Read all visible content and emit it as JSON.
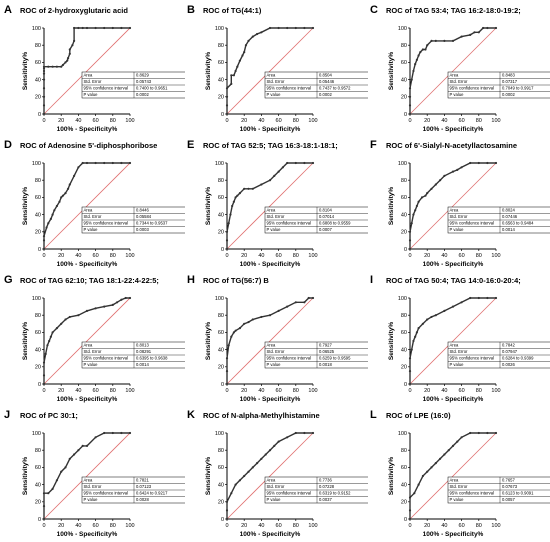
{
  "axis": {
    "ylabel": "Sensitivity%",
    "xlabel": "100% - Specificity%",
    "ticks": [
      0,
      20,
      40,
      60,
      80,
      100
    ]
  },
  "stats_labels": [
    "Area",
    "Std. Error",
    "95% confidence interval",
    "P value"
  ],
  "colors": {
    "curve": "#333333",
    "reference": "#e07070"
  },
  "panels": [
    {
      "letter": "A",
      "title": "ROC of 2-hydroxyglutaric acid",
      "stats": [
        "0.8629",
        "0.05743",
        "0.7400 to 0.9651",
        "0.0002"
      ]
    },
    {
      "letter": "B",
      "title": "ROC of TG(44:1)",
      "stats": [
        "0.8504",
        "0.05446",
        "0.7437 to 0.9572",
        "0.0002"
      ]
    },
    {
      "letter": "C",
      "title": "ROC of TAG 53:4; TAG 16:2-18:0-19:2;",
      "stats": [
        "0.8483",
        "0.07317",
        "0.7049 to 0.9917",
        "0.0002"
      ]
    },
    {
      "letter": "D",
      "title": "ROC of Adenosine 5'-diphosphoribose",
      "stats": [
        "0.8446",
        "0.05584",
        "0.7344 to 0.9537",
        "0.0003"
      ]
    },
    {
      "letter": "E",
      "title": "ROC of TAG 52:5; TAG 16:3-18:1-18:1;",
      "stats": [
        "0.8104",
        "0.07014",
        "0.6808 to 0.9559",
        "0.0007"
      ]
    },
    {
      "letter": "F",
      "title": "ROC of 6'-Sialyl-N-acetyllactosamine",
      "stats": [
        "0.8024",
        "0.07446",
        "0.6563 to 0.9484",
        "0.0014"
      ]
    },
    {
      "letter": "G",
      "title": "ROC of TAG 62:10; TAG 18:1-22:4-22:5;",
      "stats": [
        "0.8013",
        "0.08291",
        "0.6395 to 0.9638",
        "0.0014"
      ]
    },
    {
      "letter": "H",
      "title": "ROC of TG(56:7) B",
      "stats": [
        "0.7927",
        "0.06525",
        "0.6259 to 0.9595",
        "0.0018"
      ]
    },
    {
      "letter": "I",
      "title": "ROC of TAG 50:4; TAG 14:0-16:0-20:4;",
      "stats": [
        "0.7842",
        "0.07947",
        "0.6284 to 0.9399",
        "0.0026"
      ]
    },
    {
      "letter": "J",
      "title": "ROC of PC 30:1;",
      "stats": [
        "0.7821",
        "0.07123",
        "0.6424 to 0.9217",
        "0.0028"
      ]
    },
    {
      "letter": "K",
      "title": "ROC of N-alpha-Methylhistamine",
      "stats": [
        "0.7736",
        "0.07228",
        "0.6319 to 0.9152",
        "0.0037"
      ]
    },
    {
      "letter": "L",
      "title": "ROC of LPE (16:0)",
      "stats": [
        "0.7657",
        "0.07673",
        "0.6123 to 0.9091",
        "0.0057"
      ]
    }
  ],
  "chart_data": [
    {
      "type": "line",
      "title": "ROC of 2-hydroxyglutaric acid",
      "xlabel": "100% - Specificity%",
      "ylabel": "Sensitivity%",
      "xlim": [
        0,
        100
      ],
      "ylim": [
        0,
        100
      ],
      "series": [
        {
          "x": [
            0,
            0,
            0,
            0,
            0,
            0,
            0,
            0,
            0,
            5,
            10,
            15,
            20,
            22,
            25,
            27,
            28,
            30,
            30,
            33,
            35,
            35,
            40,
            45,
            50,
            60,
            70,
            80,
            90,
            100
          ],
          "y": [
            0,
            10,
            20,
            30,
            40,
            47,
            50,
            53,
            55,
            55,
            55,
            55,
            55,
            57,
            60,
            62,
            65,
            70,
            75,
            80,
            85,
            100,
            100,
            100,
            100,
            100,
            100,
            100,
            100,
            100
          ]
        }
      ]
    },
    {
      "type": "line",
      "title": "ROC of TG(44:1)",
      "xlabel": "100% - Specificity%",
      "ylabel": "Sensitivity%",
      "xlim": [
        0,
        100
      ],
      "ylim": [
        0,
        100
      ],
      "series": [
        {
          "x": [
            0,
            0,
            0,
            0,
            5,
            5,
            8,
            10,
            12,
            15,
            18,
            20,
            22,
            25,
            30,
            35,
            40,
            50,
            60,
            70,
            80,
            90,
            100
          ],
          "y": [
            0,
            10,
            20,
            30,
            35,
            45,
            45,
            50,
            55,
            62,
            68,
            72,
            80,
            85,
            90,
            93,
            95,
            100,
            100,
            100,
            100,
            100,
            100
          ]
        }
      ]
    },
    {
      "type": "line",
      "title": "ROC of TAG 53:4; TAG 16:2-18:0-19:2;",
      "xlabel": "100% - Specificity%",
      "ylabel": "Sensitivity%",
      "xlim": [
        0,
        100
      ],
      "ylim": [
        0,
        100
      ],
      "series": [
        {
          "x": [
            0,
            0,
            0,
            0,
            2,
            4,
            6,
            8,
            10,
            12,
            15,
            18,
            20,
            25,
            30,
            40,
            50,
            60,
            70,
            75,
            80,
            85,
            90,
            100
          ],
          "y": [
            0,
            10,
            20,
            30,
            40,
            50,
            58,
            63,
            68,
            72,
            75,
            75,
            80,
            85,
            85,
            85,
            85,
            90,
            92,
            95,
            95,
            100,
            100,
            100
          ]
        }
      ]
    },
    {
      "type": "line",
      "title": "ROC of Adenosine 5'-diphosphoribose",
      "xlabel": "100% - Specificity%",
      "ylabel": "Sensitivity%",
      "xlim": [
        0,
        100
      ],
      "ylim": [
        0,
        100
      ],
      "series": [
        {
          "x": [
            0,
            0,
            0,
            3,
            5,
            8,
            10,
            12,
            15,
            18,
            20,
            22,
            25,
            28,
            30,
            35,
            40,
            45,
            50,
            60,
            70,
            80,
            90,
            100
          ],
          "y": [
            0,
            10,
            15,
            25,
            30,
            35,
            40,
            45,
            50,
            55,
            60,
            62,
            65,
            70,
            75,
            85,
            95,
            100,
            100,
            100,
            100,
            100,
            100,
            100
          ]
        }
      ]
    },
    {
      "type": "line",
      "title": "ROC of TAG 52:5; TAG 16:3-18:1-18:1;",
      "xlabel": "100% - Specificity%",
      "ylabel": "Sensitivity%",
      "xlim": [
        0,
        100
      ],
      "ylim": [
        0,
        100
      ],
      "series": [
        {
          "x": [
            0,
            0,
            0,
            2,
            4,
            6,
            8,
            10,
            12,
            15,
            20,
            25,
            30,
            40,
            50,
            55,
            60,
            65,
            70,
            80,
            90,
            100
          ],
          "y": [
            0,
            10,
            20,
            30,
            40,
            50,
            55,
            60,
            62,
            65,
            70,
            70,
            70,
            75,
            80,
            85,
            90,
            95,
            100,
            100,
            100,
            100
          ]
        }
      ]
    },
    {
      "type": "line",
      "title": "ROC of 6'-Sialyl-N-acetyllactosamine",
      "xlabel": "100% - Specificity%",
      "ylabel": "Sensitivity%",
      "xlim": [
        0,
        100
      ],
      "ylim": [
        0,
        100
      ],
      "series": [
        {
          "x": [
            0,
            0,
            0,
            2,
            4,
            6,
            8,
            10,
            14,
            18,
            20,
            25,
            30,
            35,
            40,
            50,
            55,
            60,
            70,
            80,
            90,
            100
          ],
          "y": [
            0,
            10,
            20,
            30,
            40,
            45,
            50,
            55,
            60,
            62,
            65,
            70,
            75,
            80,
            85,
            90,
            92,
            95,
            100,
            100,
            100,
            100
          ]
        }
      ]
    },
    {
      "type": "line",
      "title": "ROC of TAG 62:10; TAG 18:1-22:4-22:5;",
      "xlabel": "100% - Specificity%",
      "ylabel": "Sensitivity%",
      "xlim": [
        0,
        100
      ],
      "ylim": [
        0,
        100
      ],
      "series": [
        {
          "x": [
            0,
            0,
            0,
            2,
            4,
            6,
            8,
            10,
            15,
            20,
            25,
            30,
            40,
            50,
            60,
            70,
            80,
            85,
            90,
            95,
            100
          ],
          "y": [
            0,
            10,
            25,
            35,
            45,
            50,
            55,
            60,
            65,
            70,
            75,
            78,
            80,
            85,
            88,
            90,
            92,
            95,
            98,
            100,
            100
          ]
        }
      ]
    },
    {
      "type": "line",
      "title": "ROC of TG(56:7) B",
      "xlabel": "100% - Specificity%",
      "ylabel": "Sensitivity%",
      "xlim": [
        0,
        100
      ],
      "ylim": [
        0,
        100
      ],
      "series": [
        {
          "x": [
            0,
            0,
            0,
            2,
            5,
            8,
            10,
            15,
            20,
            25,
            30,
            40,
            50,
            60,
            70,
            80,
            90,
            95,
            100
          ],
          "y": [
            0,
            15,
            30,
            45,
            55,
            60,
            62,
            65,
            70,
            72,
            75,
            78,
            80,
            85,
            90,
            95,
            95,
            100,
            100
          ]
        }
      ]
    },
    {
      "type": "line",
      "title": "ROC of TAG 50:4; TAG 14:0-16:0-20:4;",
      "xlabel": "100% - Specificity%",
      "ylabel": "Sensitivity%",
      "xlim": [
        0,
        100
      ],
      "ylim": [
        0,
        100
      ],
      "series": [
        {
          "x": [
            0,
            0,
            0,
            2,
            4,
            6,
            8,
            10,
            15,
            20,
            25,
            30,
            40,
            50,
            60,
            70,
            80,
            90,
            100
          ],
          "y": [
            0,
            15,
            30,
            40,
            50,
            55,
            60,
            65,
            70,
            75,
            78,
            80,
            85,
            90,
            95,
            100,
            100,
            100,
            100
          ]
        }
      ]
    },
    {
      "type": "line",
      "title": "ROC of PC 30:1;",
      "xlabel": "100% - Specificity%",
      "ylabel": "Sensitivity%",
      "xlim": [
        0,
        100
      ],
      "ylim": [
        0,
        100
      ],
      "series": [
        {
          "x": [
            0,
            0,
            0,
            5,
            10,
            15,
            20,
            25,
            30,
            35,
            40,
            45,
            50,
            60,
            70,
            80,
            90,
            100
          ],
          "y": [
            0,
            15,
            30,
            30,
            35,
            45,
            55,
            60,
            70,
            75,
            80,
            85,
            85,
            95,
            100,
            100,
            100,
            100
          ]
        }
      ]
    },
    {
      "type": "line",
      "title": "ROC of N-alpha-Methylhistamine",
      "xlabel": "100% - Specificity%",
      "ylabel": "Sensitivity%",
      "xlim": [
        0,
        100
      ],
      "ylim": [
        0,
        100
      ],
      "series": [
        {
          "x": [
            0,
            0,
            0,
            5,
            10,
            15,
            20,
            25,
            30,
            35,
            40,
            45,
            50,
            55,
            60,
            70,
            80,
            90,
            100
          ],
          "y": [
            0,
            10,
            20,
            30,
            40,
            45,
            50,
            55,
            60,
            65,
            70,
            75,
            80,
            85,
            90,
            95,
            100,
            100,
            100
          ]
        }
      ]
    },
    {
      "type": "line",
      "title": "ROC of LPE (16:0)",
      "xlabel": "100% - Specificity%",
      "ylabel": "Sensitivity%",
      "xlim": [
        0,
        100
      ],
      "ylim": [
        0,
        100
      ],
      "series": [
        {
          "x": [
            0,
            0,
            0,
            5,
            10,
            15,
            20,
            25,
            30,
            35,
            40,
            45,
            50,
            55,
            60,
            70,
            80,
            90,
            100
          ],
          "y": [
            0,
            10,
            25,
            30,
            40,
            50,
            55,
            60,
            65,
            70,
            75,
            80,
            85,
            90,
            95,
            100,
            100,
            100,
            100
          ]
        }
      ]
    }
  ]
}
